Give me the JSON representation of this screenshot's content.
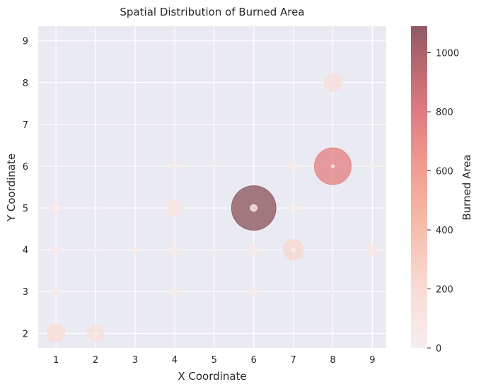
{
  "chart_data": {
    "type": "scatter",
    "title": "Spatial Distribution of Burned Area",
    "xlabel": "X Coordinate",
    "ylabel": "Y Coordinate",
    "xlim": [
      0.55,
      9.35
    ],
    "ylim": [
      1.65,
      9.35
    ],
    "xticks": [
      1,
      2,
      3,
      4,
      5,
      6,
      7,
      8,
      9
    ],
    "yticks": [
      2,
      3,
      4,
      5,
      6,
      7,
      8,
      9
    ],
    "grid": true,
    "colorbar": {
      "label": "Burned Area",
      "min": 0,
      "max": 1090,
      "ticks": [
        0,
        200,
        400,
        600,
        800,
        1000
      ],
      "colormap": "reds-to-dark-rose"
    },
    "points": [
      {
        "x": 6,
        "y": 5,
        "value": 1090
      },
      {
        "x": 8,
        "y": 6,
        "value": 750
      },
      {
        "x": 7,
        "y": 4,
        "value": 230
      },
      {
        "x": 8,
        "y": 8,
        "value": 170
      },
      {
        "x": 1,
        "y": 2,
        "value": 180
      },
      {
        "x": 2,
        "y": 2,
        "value": 150
      },
      {
        "x": 4,
        "y": 5,
        "value": 120
      },
      {
        "x": 6,
        "y": 5,
        "value": 25
      },
      {
        "x": 1,
        "y": 5,
        "value": 60
      },
      {
        "x": 9,
        "y": 4,
        "value": 80
      },
      {
        "x": 1,
        "y": 4,
        "value": 45
      },
      {
        "x": 4,
        "y": 4,
        "value": 55
      },
      {
        "x": 6,
        "y": 4,
        "value": 60
      },
      {
        "x": 1,
        "y": 3,
        "value": 40
      },
      {
        "x": 4,
        "y": 3,
        "value": 35
      },
      {
        "x": 6,
        "y": 3,
        "value": 45
      },
      {
        "x": 4,
        "y": 6,
        "value": 35
      },
      {
        "x": 7,
        "y": 6,
        "value": 45
      },
      {
        "x": 9,
        "y": 6,
        "value": 20
      },
      {
        "x": 7,
        "y": 5,
        "value": 30
      },
      {
        "x": 2,
        "y": 4,
        "value": 25
      },
      {
        "x": 3,
        "y": 4,
        "value": 25
      },
      {
        "x": 5,
        "y": 4,
        "value": 15
      },
      {
        "x": 2,
        "y": 5,
        "value": 10
      },
      {
        "x": 5,
        "y": 6,
        "value": 8
      },
      {
        "x": 7,
        "y": 3,
        "value": 5
      },
      {
        "x": 8,
        "y": 3,
        "value": 5
      },
      {
        "x": 7,
        "y": 4,
        "value": 10
      },
      {
        "x": 2,
        "y": 2,
        "value": 8
      },
      {
        "x": 8,
        "y": 6,
        "value": 5
      }
    ]
  }
}
